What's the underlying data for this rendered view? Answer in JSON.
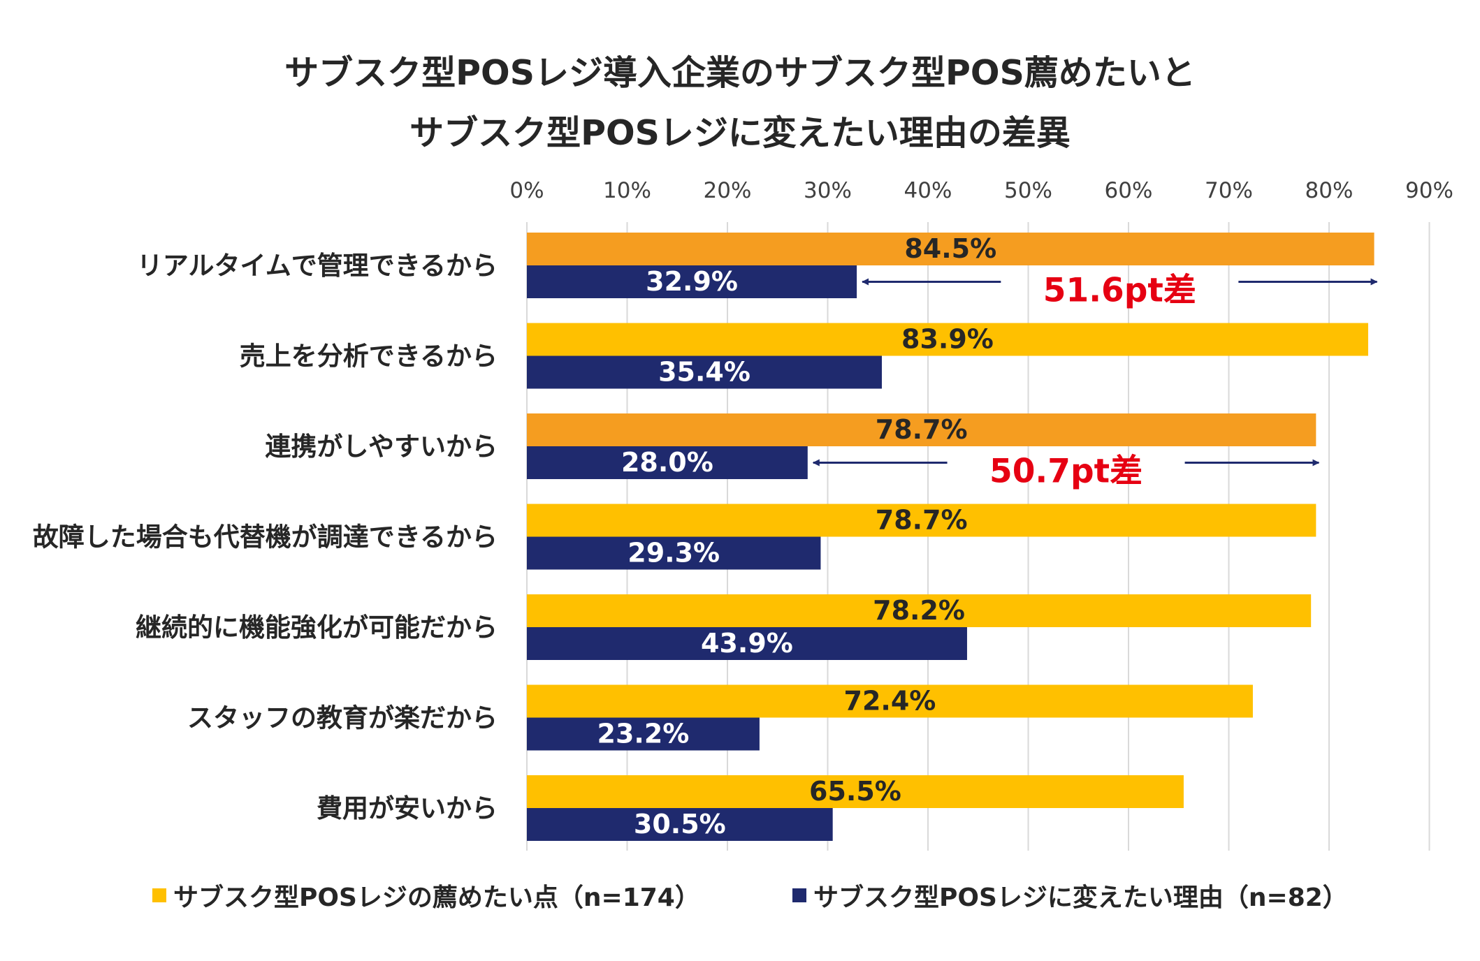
{
  "chart_data": {
    "type": "bar",
    "orientation": "horizontal",
    "title": [
      "サブスク型POSレジ導入企業のサブスク型POS薦めたいと",
      "サブスク型POSレジに変えたい理由の差異"
    ],
    "categories": [
      "リアルタイムで管理できるから",
      "売上を分析できるから",
      "連携がしやすいから",
      "故障した場合も代替機が調達できるから",
      "継続的に機能強化が可能だから",
      "スタッフの教育が楽だから",
      "費用が安いから"
    ],
    "series": [
      {
        "name": "サブスク型POSレジの薦めたい点（n=174）",
        "values": [
          84.5,
          83.9,
          78.7,
          78.7,
          78.2,
          72.4,
          65.5
        ],
        "labels": [
          "84.5%",
          "83.9%",
          "78.7%",
          "78.7%",
          "78.2%",
          "72.4%",
          "65.5%"
        ],
        "highlight_rows": [
          0,
          2
        ]
      },
      {
        "name": "サブスク型POSレジに変えたい理由（n=82）",
        "values": [
          32.9,
          35.4,
          28.0,
          29.3,
          43.9,
          23.2,
          30.5
        ],
        "labels": [
          "32.9%",
          "35.4%",
          "28.0%",
          "29.3%",
          "43.9%",
          "23.2%",
          "30.5%"
        ]
      }
    ],
    "x_axis": {
      "range": [
        0,
        90
      ],
      "ticks": [
        0,
        10,
        20,
        30,
        40,
        50,
        60,
        70,
        80,
        90
      ],
      "tick_labels": [
        "0%",
        "10%",
        "20%",
        "30%",
        "40%",
        "50%",
        "60%",
        "70%",
        "80%",
        "90%"
      ],
      "position": "top",
      "grid": true
    },
    "annotations": [
      {
        "row": 0,
        "from": 32.9,
        "to": 84.5,
        "text": "51.6pt差"
      },
      {
        "row": 2,
        "from": 28.0,
        "to": 78.7,
        "text": "50.7pt差"
      }
    ],
    "legend": {
      "position": "bottom"
    }
  },
  "colors": {
    "series1": "#ffc000",
    "series1_highlight": "#f59d20",
    "series2": "#1f2a6e",
    "annotation_text": "#e60012",
    "arrow": "#1f2a6e",
    "grid": "#d9d9d9",
    "label_dark": "#262626",
    "label_light": "#ffffff"
  }
}
